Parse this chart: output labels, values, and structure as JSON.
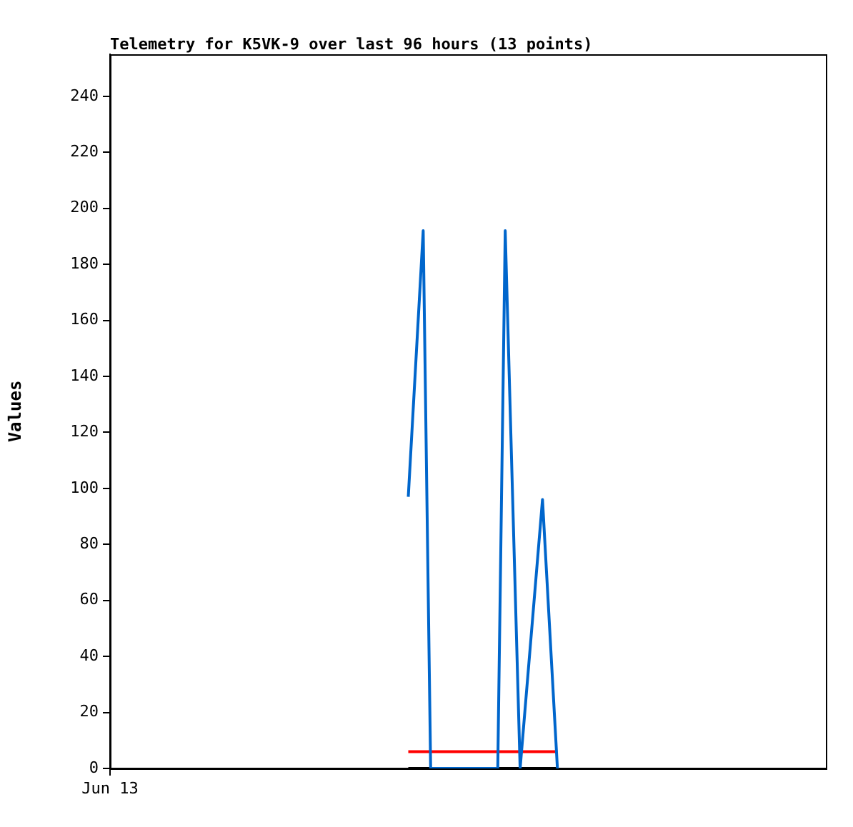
{
  "chart_data": {
    "type": "line",
    "title": "Telemetry for K5VK-9 over last 96 hours (13 points)",
    "ylabel": "Values",
    "categories": [
      "Jun 13",
      null,
      null,
      null,
      null,
      null,
      null,
      null,
      null,
      null,
      null,
      null,
      null,
      null,
      null,
      null,
      null,
      null,
      null,
      null,
      null,
      null,
      null,
      null,
      null,
      null,
      null,
      null,
      null,
      null,
      null,
      null,
      null,
      null,
      null,
      null,
      null,
      null,
      null,
      null,
      null,
      null,
      null,
      null,
      null,
      null,
      null,
      null,
      null,
      null,
      null,
      null,
      null,
      null,
      null,
      null,
      null,
      null,
      null,
      null,
      null,
      null,
      null,
      null,
      null,
      null,
      null,
      null,
      null,
      null,
      null,
      null,
      null,
      null,
      null,
      null,
      null,
      null,
      null,
      null,
      null,
      null,
      null,
      null,
      null,
      null,
      null,
      null,
      null,
      null,
      null,
      null,
      null,
      null,
      null,
      null,
      null
    ],
    "ylim": [
      0,
      255
    ],
    "yticks": [
      0,
      20,
      40,
      60,
      80,
      100,
      120,
      140,
      160,
      180,
      200,
      220,
      240
    ],
    "marker": "none",
    "line_style": "solid",
    "series": [
      {
        "color": "#0066cc",
        "values": [
          null,
          null,
          null,
          null,
          null,
          null,
          null,
          null,
          null,
          null,
          null,
          null,
          null,
          null,
          null,
          null,
          null,
          null,
          null,
          null,
          null,
          null,
          null,
          null,
          null,
          null,
          null,
          null,
          null,
          null,
          null,
          null,
          null,
          null,
          null,
          null,
          null,
          null,
          null,
          null,
          97,
          null,
          192,
          0,
          null,
          null,
          null,
          null,
          null,
          null,
          null,
          null,
          0,
          192,
          null,
          0,
          null,
          null,
          96,
          null,
          0,
          null,
          null,
          null,
          null,
          null,
          null,
          null,
          null,
          null,
          null,
          null,
          null,
          null,
          null,
          null,
          null,
          null,
          null,
          null,
          null,
          null,
          null,
          null,
          null,
          null,
          null,
          null,
          null,
          null,
          null,
          null,
          null,
          null,
          null,
          null,
          null
        ]
      },
      {
        "color": "#ff0000",
        "values": [
          null,
          null,
          null,
          null,
          null,
          null,
          null,
          null,
          null,
          null,
          null,
          null,
          null,
          null,
          null,
          null,
          null,
          null,
          null,
          null,
          null,
          null,
          null,
          null,
          null,
          null,
          null,
          null,
          null,
          null,
          null,
          null,
          null,
          null,
          null,
          null,
          null,
          null,
          null,
          null,
          6,
          null,
          null,
          null,
          null,
          null,
          null,
          null,
          null,
          null,
          null,
          null,
          null,
          null,
          null,
          null,
          null,
          null,
          null,
          null,
          6,
          null,
          null,
          null,
          null,
          null,
          null,
          null,
          null,
          null,
          null,
          null,
          null,
          null,
          null,
          null,
          null,
          null,
          null,
          null,
          null,
          null,
          null,
          null,
          null,
          null,
          null,
          null,
          null,
          null,
          null,
          null,
          null,
          null,
          null,
          null,
          null
        ]
      },
      {
        "color": "#000000",
        "values": [
          null,
          null,
          null,
          null,
          null,
          null,
          null,
          null,
          null,
          null,
          null,
          null,
          null,
          null,
          null,
          null,
          null,
          null,
          null,
          null,
          null,
          null,
          null,
          null,
          null,
          null,
          null,
          null,
          null,
          null,
          null,
          null,
          null,
          null,
          null,
          null,
          null,
          null,
          null,
          null,
          0,
          null,
          null,
          null,
          null,
          null,
          null,
          null,
          null,
          null,
          null,
          null,
          null,
          null,
          null,
          null,
          null,
          null,
          null,
          null,
          0,
          null,
          null,
          null,
          null,
          null,
          null,
          null,
          null,
          null,
          null,
          null,
          null,
          null,
          null,
          null,
          null,
          null,
          null,
          null,
          null,
          null,
          null,
          null,
          null,
          null,
          null,
          null,
          null,
          null,
          null,
          null,
          null,
          null,
          null,
          null,
          null
        ]
      }
    ]
  }
}
